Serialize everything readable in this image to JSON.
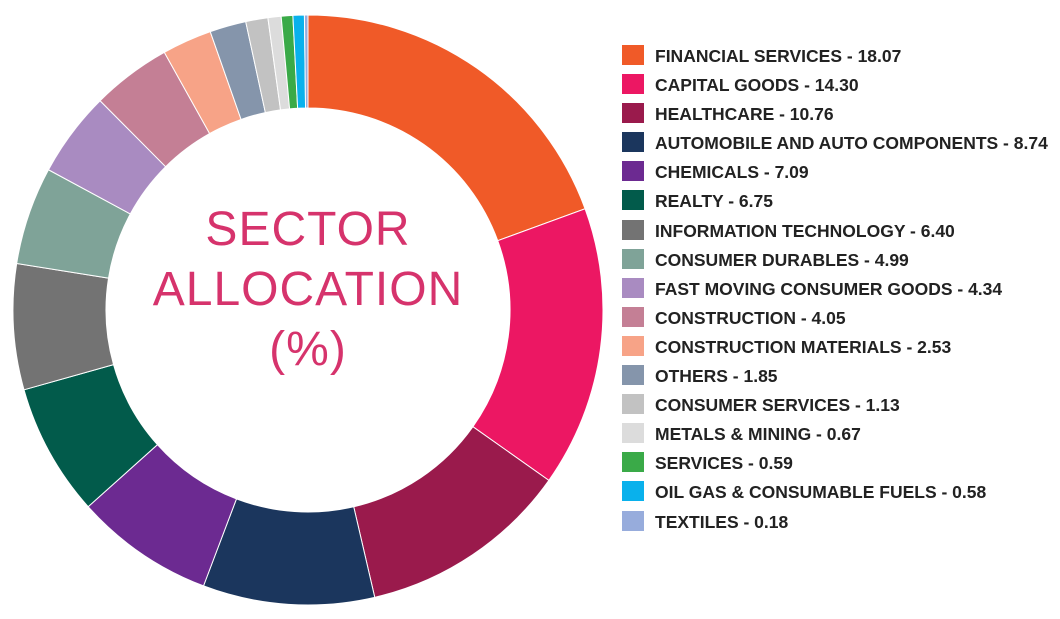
{
  "title_lines": [
    "SECTOR",
    "ALLOCATION",
    "(%)"
  ],
  "chart_data": {
    "type": "pie",
    "style": "donut",
    "title": "SECTOR ALLOCATION (%)",
    "legend_position": "right",
    "slices": [
      {
        "name": "FINANCIAL SERVICES",
        "value": 18.07,
        "color": "#f05a28",
        "legend": "FINANCIAL SERVICES - 18.07"
      },
      {
        "name": "CAPITAL GOODS",
        "value": 14.3,
        "color": "#ec1763",
        "legend": "CAPITAL GOODS - 14.30"
      },
      {
        "name": "HEALTHCARE",
        "value": 10.76,
        "color": "#9a1a4c",
        "legend": "HEALTHCARE - 10.76"
      },
      {
        "name": "AUTOMOBILE AND AUTO COMPONENTS",
        "value": 8.74,
        "color": "#1b365d",
        "legend": "AUTOMOBILE AND AUTO COMPONENTS - 8.74"
      },
      {
        "name": "CHEMICALS",
        "value": 7.09,
        "color": "#6c2a91",
        "legend": "CHEMICALS - 7.09"
      },
      {
        "name": "REALTY",
        "value": 6.75,
        "color": "#025b4b",
        "legend": "REALTY - 6.75"
      },
      {
        "name": "INFORMATION TECHNOLOGY",
        "value": 6.4,
        "color": "#737373",
        "legend": "INFORMATION TECHNOLOGY - 6.40"
      },
      {
        "name": "CONSUMER DURABLES",
        "value": 4.99,
        "color": "#7fa398",
        "legend": "CONSUMER DURABLES - 4.99"
      },
      {
        "name": "FAST MOVING CONSUMER GOODS",
        "value": 4.34,
        "color": "#a98bc1",
        "legend": "FAST MOVING CONSUMER GOODS - 4.34"
      },
      {
        "name": "CONSTRUCTION",
        "value": 4.05,
        "color": "#c47f95",
        "legend": "CONSTRUCTION - 4.05"
      },
      {
        "name": "CONSTRUCTION MATERIALS",
        "value": 2.53,
        "color": "#f7a387",
        "legend": "CONSTRUCTION MATERIALS - 2.53"
      },
      {
        "name": "OTHERS",
        "value": 1.85,
        "color": "#8595ab",
        "legend": "OTHERS - 1.85"
      },
      {
        "name": "CONSUMER SERVICES",
        "value": 1.13,
        "color": "#c2c2c2",
        "legend": "CONSUMER SERVICES - 1.13"
      },
      {
        "name": "METALS & MINING",
        "value": 0.67,
        "color": "#dcdcdc",
        "legend": "METALS & MINING - 0.67"
      },
      {
        "name": "SERVICES",
        "value": 0.59,
        "color": "#3aaa48",
        "legend": "SERVICES - 0.59"
      },
      {
        "name": "OIL GAS & CONSUMABLE FUELS",
        "value": 0.58,
        "color": "#09b1ec",
        "legend": "OIL GAS & CONSUMABLE FUELS - 0.58"
      },
      {
        "name": "TEXTILES",
        "value": 0.18,
        "color": "#97acdc",
        "legend": "TEXTILES - 0.18"
      }
    ]
  }
}
